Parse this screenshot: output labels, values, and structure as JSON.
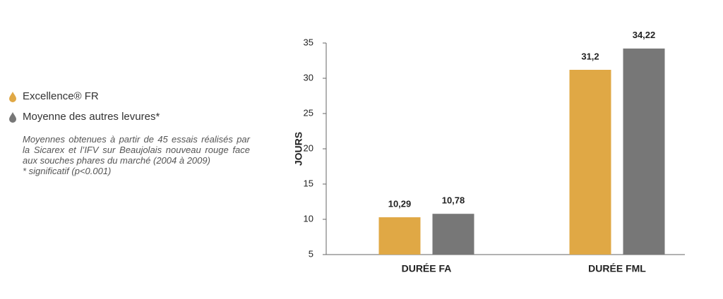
{
  "chart_data": {
    "type": "bar",
    "y_label": "JOURS",
    "categories": [
      "DURÉE FA",
      "DURÉE FML"
    ],
    "series": [
      {
        "name": "Excellence® FR",
        "color": "#e0a845",
        "values": [
          10.29,
          31.2
        ],
        "value_labels": [
          "10,29",
          "31,2"
        ]
      },
      {
        "name": "Moyenne des autres levures*",
        "color": "#777777",
        "values": [
          10.78,
          34.22
        ],
        "value_labels": [
          "10,78",
          "34,22"
        ]
      }
    ],
    "ylim": [
      5,
      35
    ],
    "yticks": [
      5,
      10,
      15,
      20,
      25,
      30,
      35
    ],
    "grid": false,
    "note": "Moyennes obtenues à partir de 45 essais réalisés par la Sicarex et l’IFV sur Beaujolais nouveau rouge face aux souches phares du marché (2004 à 2009)",
    "footnote": "* significatif (p<0.001)"
  }
}
